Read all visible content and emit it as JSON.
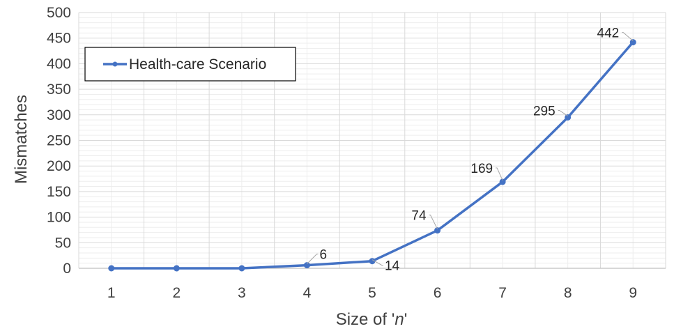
{
  "chart_data": {
    "type": "line",
    "title": "",
    "xlabel_prefix": "Size of '",
    "xlabel_var": "n",
    "xlabel_suffix": "'",
    "ylabel": "Mismatches",
    "x": [
      1,
      2,
      3,
      4,
      5,
      6,
      7,
      8,
      9
    ],
    "ylim": [
      0,
      500
    ],
    "yticks": [
      0,
      50,
      100,
      150,
      200,
      250,
      300,
      350,
      400,
      450,
      500
    ],
    "series": [
      {
        "name": "Health-care Scenario",
        "color": "#4472c4",
        "values": [
          0,
          0,
          0,
          6,
          14,
          74,
          169,
          295,
          442
        ],
        "labels": [
          "",
          "",
          "",
          "6",
          "14",
          "74",
          "169",
          "295",
          "442"
        ]
      }
    ],
    "grid": true,
    "legend_position": "top-left"
  }
}
